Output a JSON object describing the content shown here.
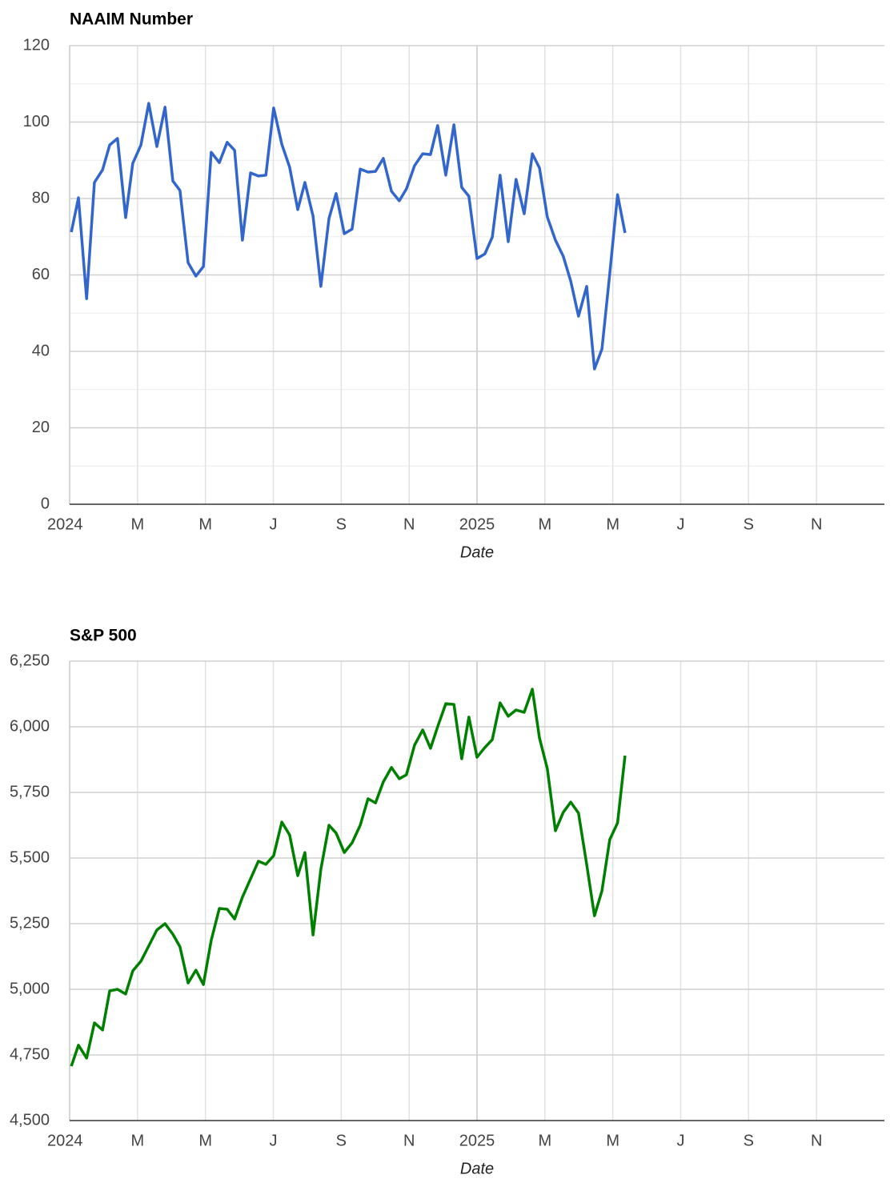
{
  "chart_data": [
    {
      "type": "line",
      "title": "NAAIM Number",
      "xlabel": "Date",
      "color": "#3366cc",
      "grid": true,
      "minor_grid": true,
      "xlim": [
        0,
        24
      ],
      "xticks": [
        {
          "value": 0,
          "label": "2024"
        },
        {
          "value": 2,
          "label": "M"
        },
        {
          "value": 4,
          "label": "M"
        },
        {
          "value": 6,
          "label": "J"
        },
        {
          "value": 8,
          "label": "S"
        },
        {
          "value": 10,
          "label": "N"
        },
        {
          "value": 12,
          "label": "2025"
        },
        {
          "value": 14,
          "label": "M"
        },
        {
          "value": 16,
          "label": "M"
        },
        {
          "value": 18,
          "label": "J"
        },
        {
          "value": 20,
          "label": "S"
        },
        {
          "value": 22,
          "label": "N"
        }
      ],
      "ylim": [
        0,
        120
      ],
      "yticks": [
        0,
        20,
        40,
        60,
        80,
        100,
        120
      ],
      "x": [
        0.05,
        0.26,
        0.5,
        0.73,
        0.97,
        1.18,
        1.41,
        1.65,
        1.86,
        2.1,
        2.33,
        2.57,
        2.81,
        3.04,
        3.25,
        3.49,
        3.72,
        3.94,
        4.17,
        4.41,
        4.64,
        4.86,
        5.09,
        5.33,
        5.56,
        5.78,
        6.01,
        6.25,
        6.48,
        6.72,
        6.93,
        7.17,
        7.4,
        7.64,
        7.85,
        8.09,
        8.32,
        8.56,
        8.79,
        9.01,
        9.24,
        9.48,
        9.71,
        9.92,
        10.16,
        10.4,
        10.63,
        10.84,
        11.08,
        11.32,
        11.55,
        11.76,
        12.0,
        12.23,
        12.45,
        12.68,
        12.92,
        13.15,
        13.39,
        13.63,
        13.84,
        14.07,
        14.31,
        14.54,
        14.76,
        14.99,
        15.23,
        15.46,
        15.68,
        15.91,
        16.14,
        16.36
      ],
      "values": [
        71.2,
        80.2,
        53.8,
        84.2,
        87.5,
        94,
        95.7,
        75,
        89.2,
        94,
        104.9,
        93.6,
        103.9,
        84.6,
        82.1,
        63.2,
        59.7,
        62.2,
        92.1,
        89.4,
        94.7,
        92.6,
        69.1,
        86.7,
        85.9,
        86.1,
        103.7,
        94.2,
        88.2,
        77.1,
        84.2,
        75.4,
        57,
        74.8,
        81.3,
        70.8,
        72,
        87.7,
        86.9,
        87.1,
        90.5,
        81.9,
        79.4,
        82.5,
        88.6,
        91.7,
        91.5,
        99.1,
        86.1,
        99.3,
        82.9,
        80.6,
        64.3,
        65.5,
        69.9,
        86.1,
        68.7,
        85,
        76,
        91.7,
        88,
        75.2,
        69.1,
        64.9,
        58.4,
        49.2,
        57,
        35.4,
        40.6,
        60.3,
        81,
        71
      ]
    },
    {
      "type": "line",
      "title": "S&P 500",
      "xlabel": "Date",
      "color": "#008000",
      "grid": true,
      "minor_grid": false,
      "xlim": [
        0,
        24
      ],
      "xticks": [
        {
          "value": 0,
          "label": "2024"
        },
        {
          "value": 2,
          "label": "M"
        },
        {
          "value": 4,
          "label": "M"
        },
        {
          "value": 6,
          "label": "J"
        },
        {
          "value": 8,
          "label": "S"
        },
        {
          "value": 10,
          "label": "N"
        },
        {
          "value": 12,
          "label": "2025"
        },
        {
          "value": 14,
          "label": "M"
        },
        {
          "value": 16,
          "label": "M"
        },
        {
          "value": 18,
          "label": "J"
        },
        {
          "value": 20,
          "label": "S"
        },
        {
          "value": 22,
          "label": "N"
        }
      ],
      "ylim": [
        4500,
        6250
      ],
      "yticks": [
        {
          "value": 4500,
          "label": "4,500"
        },
        {
          "value": 4750,
          "label": "4,750"
        },
        {
          "value": 5000,
          "label": "5,000"
        },
        {
          "value": 5250,
          "label": "5,250"
        },
        {
          "value": 5500,
          "label": "5,500"
        },
        {
          "value": 5750,
          "label": "5,750"
        },
        {
          "value": 6000,
          "label": "6,000"
        },
        {
          "value": 6250,
          "label": "6,250"
        }
      ],
      "x": [
        0.05,
        0.26,
        0.5,
        0.73,
        0.97,
        1.18,
        1.41,
        1.65,
        1.86,
        2.1,
        2.33,
        2.57,
        2.81,
        3.04,
        3.25,
        3.49,
        3.72,
        3.94,
        4.17,
        4.41,
        4.64,
        4.86,
        5.09,
        5.33,
        5.56,
        5.78,
        6.01,
        6.25,
        6.48,
        6.72,
        6.93,
        7.17,
        7.4,
        7.64,
        7.85,
        8.09,
        8.32,
        8.56,
        8.79,
        9.01,
        9.24,
        9.48,
        9.71,
        9.92,
        10.16,
        10.4,
        10.63,
        10.84,
        11.08,
        11.32,
        11.55,
        11.76,
        12.0,
        12.23,
        12.45,
        12.68,
        12.92,
        13.15,
        13.39,
        13.63,
        13.84,
        14.07,
        14.31,
        14.54,
        14.76,
        14.99,
        15.23,
        15.46,
        15.68,
        15.91,
        16.14,
        16.36
      ],
      "values": [
        4707,
        4787,
        4738,
        4872,
        4845,
        4994,
        5000,
        4982,
        5070,
        5107,
        5165,
        5226,
        5250,
        5210,
        5162,
        5024,
        5073,
        5018,
        5186,
        5308,
        5305,
        5268,
        5351,
        5421,
        5488,
        5476,
        5509,
        5637,
        5588,
        5433,
        5521,
        5207,
        5457,
        5625,
        5595,
        5521,
        5558,
        5625,
        5726,
        5710,
        5790,
        5845,
        5802,
        5817,
        5930,
        5988,
        5918,
        6000,
        6088,
        6085,
        5878,
        6037,
        5884,
        5921,
        5951,
        6091,
        6040,
        6064,
        6055,
        6143,
        5957,
        5841,
        5604,
        5674,
        5713,
        5671,
        5476,
        5280,
        5375,
        5570,
        5634,
        5890
      ]
    }
  ]
}
